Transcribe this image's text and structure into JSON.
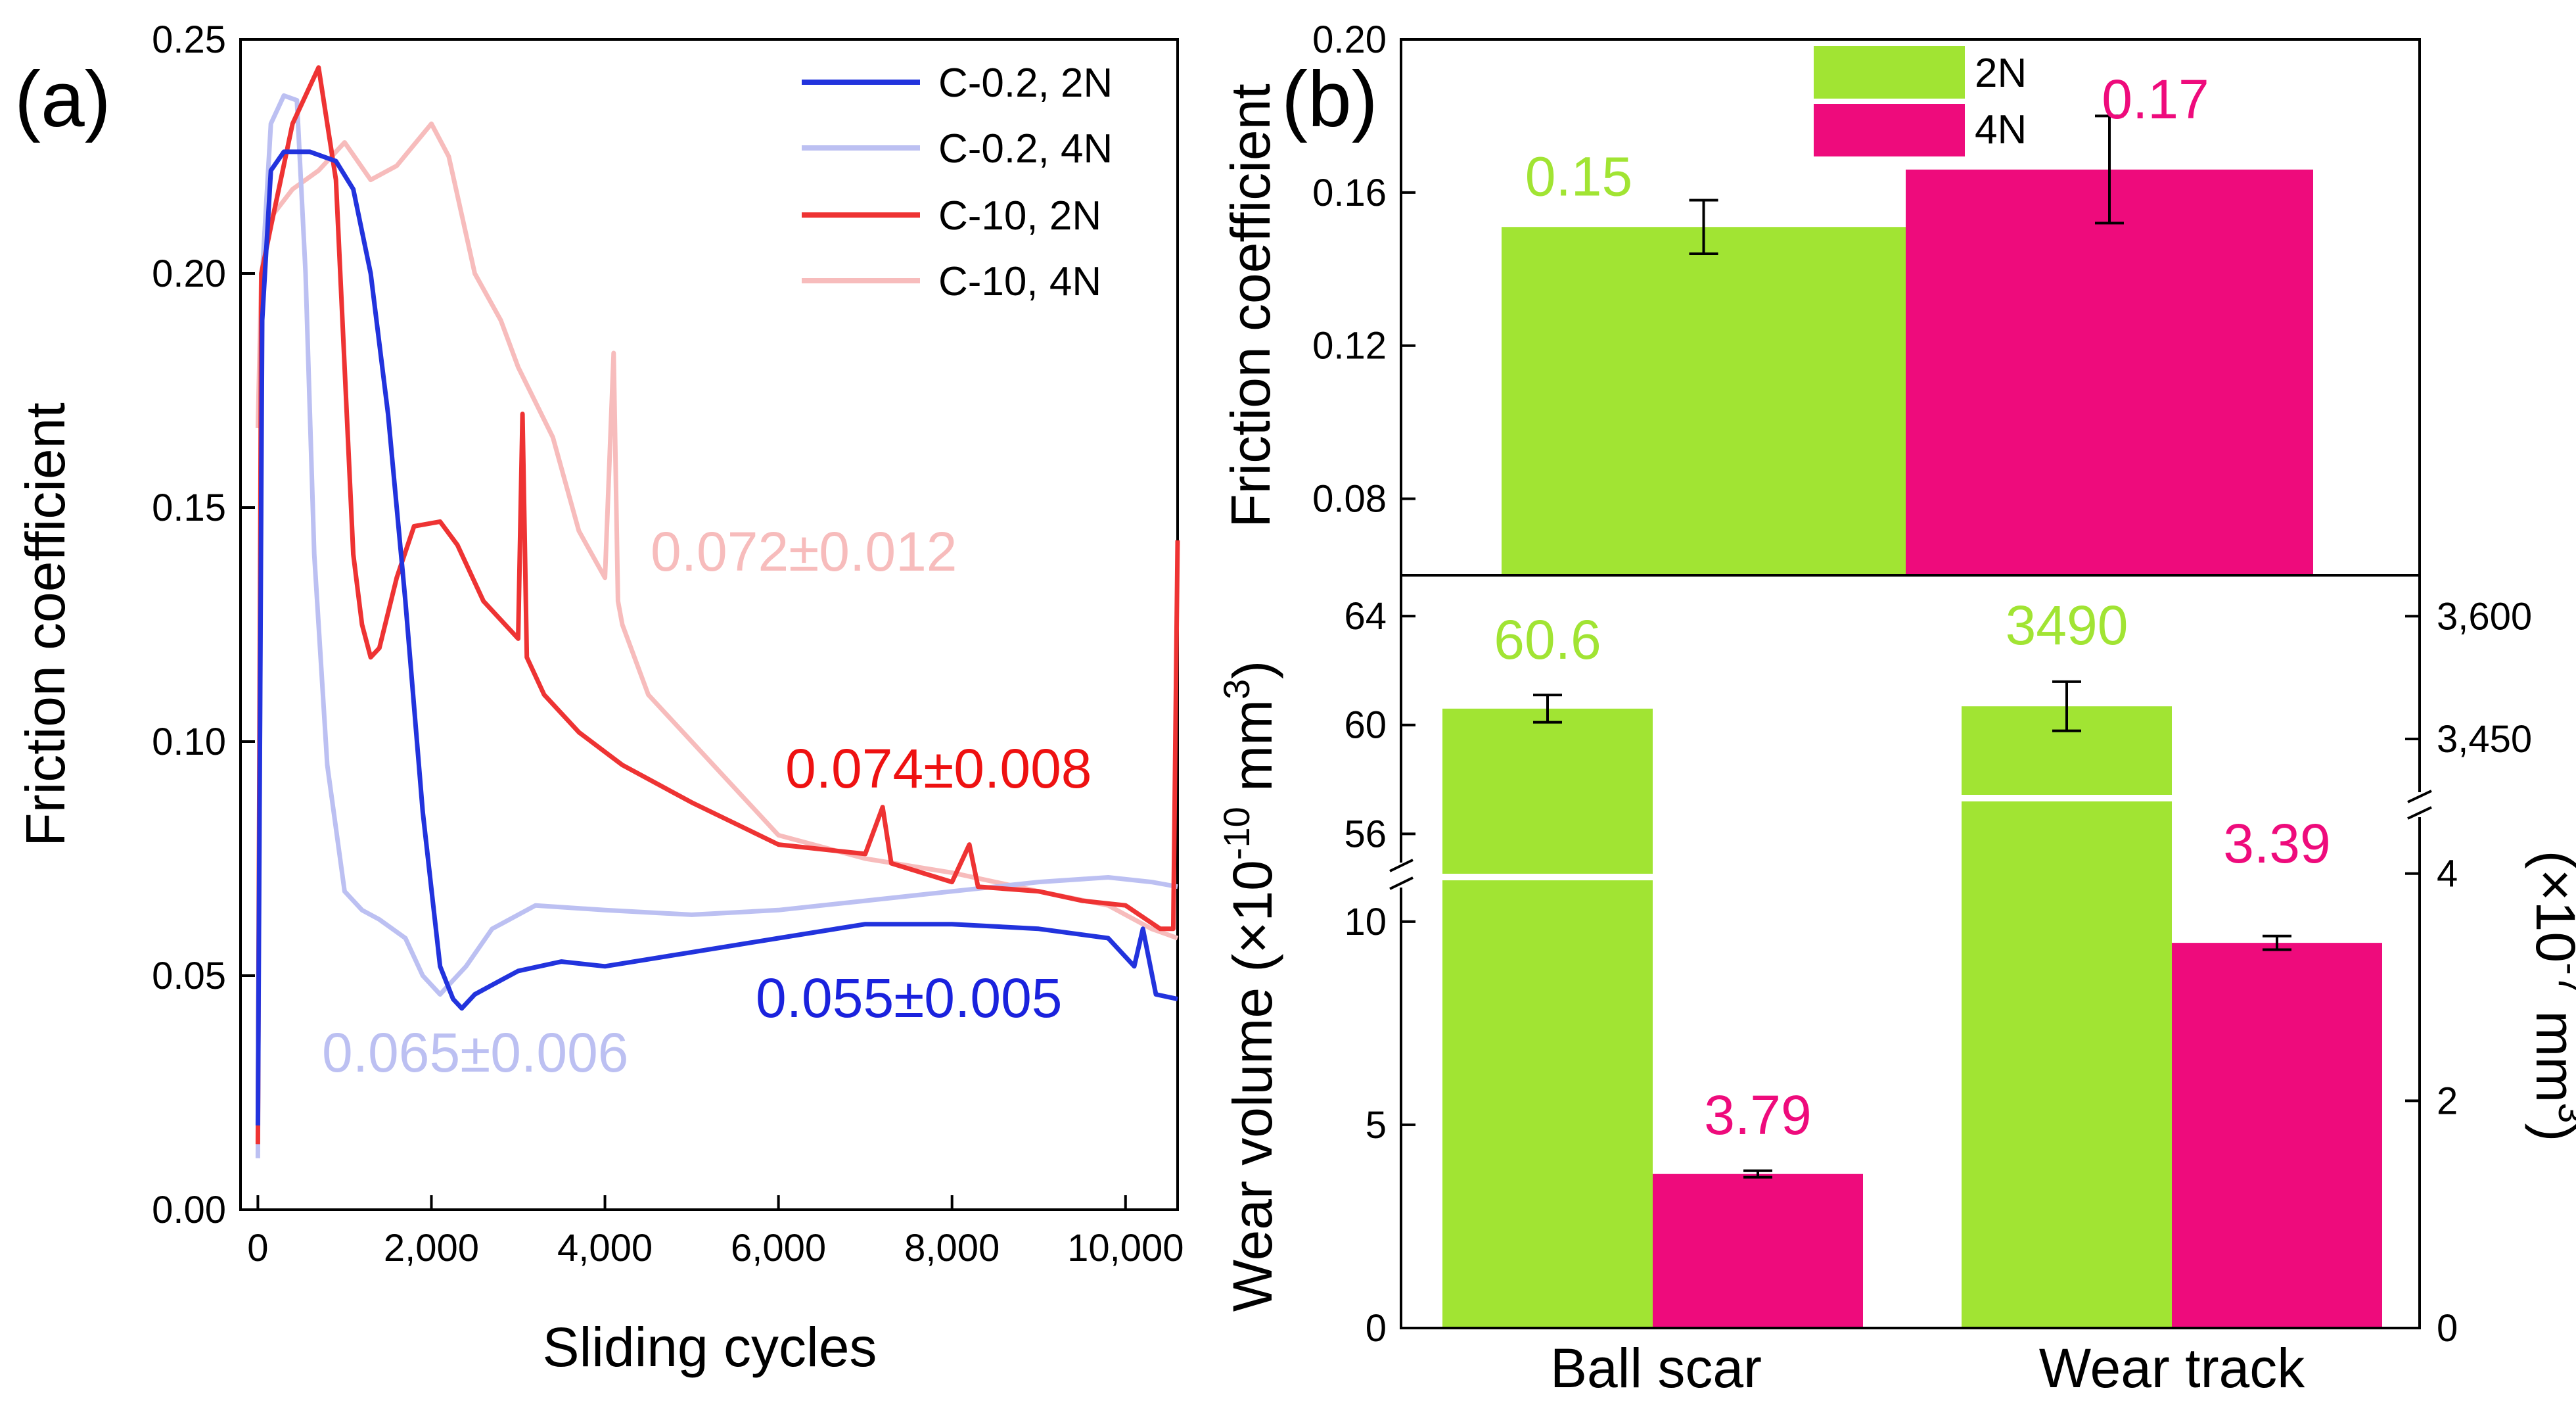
{
  "colors": {
    "c02_2N": "#2233dd",
    "c02_4N": "#bcc0f2",
    "c10_2N": "#ee3333",
    "c10_4N": "#f7bcbc",
    "bar_2N": "#a1e433",
    "bar_4N": "#ee0b7c"
  },
  "panel_a": {
    "letter": "(a)",
    "xlabel": "Sliding cycles",
    "ylabel": "Friction coefficient",
    "x_ticks": [
      "0",
      "2,000",
      "4,000",
      "6,000",
      "8,000",
      "10,000"
    ],
    "y_ticks": [
      "0.00",
      "0.05",
      "0.10",
      "0.15",
      "0.20",
      "0.25"
    ],
    "legend": [
      "C-0.2, 2N",
      "C-0.2, 4N",
      "C-10, 2N",
      "C-10, 4N"
    ],
    "annotations": {
      "c10_4N": "0.072±0.012",
      "c10_2N": "0.074±0.008",
      "c02_2N": "0.055±0.005",
      "c02_4N": "0.065±0.006"
    }
  },
  "panel_b": {
    "letter": "(b)",
    "top_ylabel": "Friction coefficient",
    "top_y_ticks": [
      "0.08",
      "0.12",
      "0.16",
      "0.20"
    ],
    "legend": [
      "2N",
      "4N"
    ],
    "top_labels": [
      "0.15",
      "0.17"
    ],
    "bottom_ylabel": "Wear volume (×10",
    "bottom_ylabel_exp": "-10",
    "bottom_ylabel_end": " mm",
    "bottom_ylabel_sup3": "3",
    "bottom_ylabel_close": ")",
    "right_ylabel": "(×10",
    "right_ylabel_exp": "-7",
    "right_ylabel_end": " mm",
    "right_ylabel_sup3": "3",
    "right_ylabel_close": ")",
    "left_ticks_upper": [
      "56",
      "60",
      "64"
    ],
    "left_ticks_lower": [
      "0",
      "5",
      "10"
    ],
    "right_ticks_upper": [
      "3,450",
      "3,600"
    ],
    "right_ticks_lower": [
      "0",
      "2",
      "4"
    ],
    "categories": [
      "Ball scar",
      "Wear track"
    ],
    "bar_labels": {
      "ball_2N": "60.6",
      "ball_4N": "3.79",
      "track_2N": "3490",
      "track_4N": "3.39"
    }
  },
  "chart_data": [
    {
      "type": "line",
      "title": "(a)",
      "xlabel": "Sliding cycles",
      "ylabel": "Friction coefficient",
      "xlim": [
        -200,
        10600
      ],
      "ylim": [
        0,
        0.25
      ],
      "series": [
        {
          "name": "C-0.2, 2N",
          "x": [
            0,
            50,
            150,
            300,
            600,
            900,
            1100,
            1300,
            1500,
            1700,
            1900,
            2100,
            2250,
            2350,
            2500,
            2700,
            3000,
            3500,
            4000,
            5000,
            6000,
            7000,
            8000,
            9000,
            9800,
            10100,
            10200,
            10350,
            10600
          ],
          "y": [
            0.018,
            0.19,
            0.222,
            0.226,
            0.226,
            0.224,
            0.218,
            0.2,
            0.17,
            0.13,
            0.085,
            0.052,
            0.045,
            0.043,
            0.046,
            0.048,
            0.051,
            0.053,
            0.052,
            0.055,
            0.058,
            0.061,
            0.061,
            0.06,
            0.058,
            0.052,
            0.06,
            0.046,
            0.045
          ]
        },
        {
          "name": "C-0.2, 4N",
          "x": [
            0,
            50,
            150,
            300,
            450,
            550,
            650,
            800,
            1000,
            1200,
            1400,
            1700,
            1900,
            2100,
            2400,
            2700,
            3200,
            4000,
            5000,
            6000,
            7000,
            8000,
            9000,
            9800,
            10300,
            10600
          ],
          "y": [
            0.011,
            0.2,
            0.232,
            0.238,
            0.237,
            0.2,
            0.14,
            0.095,
            0.068,
            0.064,
            0.062,
            0.058,
            0.05,
            0.046,
            0.052,
            0.06,
            0.065,
            0.064,
            0.063,
            0.064,
            0.066,
            0.068,
            0.07,
            0.071,
            0.07,
            0.069
          ]
        },
        {
          "name": "C-10, 2N",
          "x": [
            0,
            40,
            150,
            400,
            700,
            900,
            1000,
            1100,
            1200,
            1300,
            1400,
            1600,
            1800,
            2100,
            2300,
            2600,
            3000,
            3050,
            3100,
            3300,
            3700,
            4200,
            5000,
            6000,
            7000,
            7200,
            7300,
            8000,
            8200,
            8300,
            9000,
            9500,
            10000,
            10400,
            10550,
            10600
          ],
          "y": [
            0.014,
            0.2,
            0.21,
            0.232,
            0.244,
            0.22,
            0.18,
            0.14,
            0.125,
            0.118,
            0.12,
            0.135,
            0.146,
            0.147,
            0.142,
            0.13,
            0.122,
            0.17,
            0.118,
            0.11,
            0.102,
            0.095,
            0.087,
            0.078,
            0.076,
            0.086,
            0.074,
            0.07,
            0.078,
            0.069,
            0.068,
            0.066,
            0.065,
            0.06,
            0.06,
            0.143
          ]
        },
        {
          "name": "C-10, 4N",
          "x": [
            0,
            40,
            150,
            400,
            700,
            1000,
            1300,
            1600,
            2000,
            2200,
            2500,
            2800,
            3000,
            3400,
            3700,
            4000,
            4100,
            4150,
            4200,
            4500,
            5000,
            5500,
            6000,
            7000,
            8000,
            9000,
            9800,
            10300,
            10600
          ],
          "y": [
            0.167,
            0.2,
            0.212,
            0.218,
            0.222,
            0.228,
            0.22,
            0.223,
            0.232,
            0.225,
            0.2,
            0.19,
            0.18,
            0.165,
            0.145,
            0.135,
            0.183,
            0.13,
            0.125,
            0.11,
            0.1,
            0.09,
            0.08,
            0.075,
            0.072,
            0.068,
            0.065,
            0.06,
            0.058
          ]
        }
      ]
    },
    {
      "type": "bar",
      "title": "(b) top",
      "ylabel": "Friction coefficient",
      "ylim": [
        0.06,
        0.2
      ],
      "categories": [
        "2N",
        "4N"
      ],
      "values": [
        0.151,
        0.166
      ],
      "errors": [
        0.007,
        0.014
      ],
      "labels": [
        "0.15",
        "0.17"
      ]
    },
    {
      "type": "bar",
      "title": "(b) bottom",
      "ylabel": "Wear volume (×10^-10 mm^3)",
      "y2label": "(×10^-7 mm^3)",
      "categories": [
        "Ball scar",
        "Wear track"
      ],
      "series": [
        {
          "name": "2N",
          "values": [
            60.6,
            3490
          ],
          "errors": [
            0.5,
            30
          ]
        },
        {
          "name": "4N",
          "values": [
            3.79,
            3.39
          ],
          "errors": [
            0.08,
            0.06
          ]
        }
      ]
    }
  ]
}
